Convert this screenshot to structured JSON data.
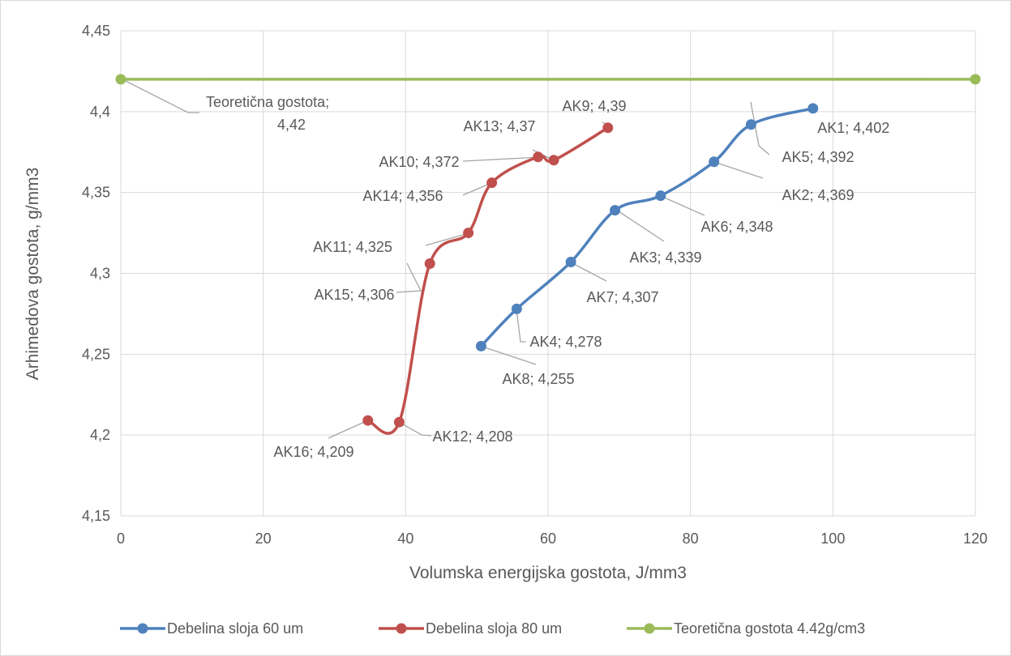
{
  "chart_data": {
    "type": "scatter",
    "title": "",
    "xlabel": "Volumska energijska gostota, J/mm3",
    "ylabel": "Arhimedova gostota, g/mm3",
    "xlim": [
      0,
      120
    ],
    "ylim": [
      4.15,
      4.45
    ],
    "x_ticks": [
      "0",
      "20",
      "40",
      "60",
      "80",
      "100",
      "120"
    ],
    "y_ticks": [
      "4,15",
      "4,2",
      "4,25",
      "4,3",
      "4,35",
      "4,4",
      "4,45"
    ],
    "grid": true,
    "legend_position": "bottom",
    "smooth_lines": true,
    "series": [
      {
        "name": "Debelina sloja 60 um",
        "color": "#4f81bd",
        "points": [
          {
            "x": 50.6,
            "y": 4.255,
            "label": "AK8; 4,255"
          },
          {
            "x": 55.6,
            "y": 4.278,
            "label": "AK4; 4,278"
          },
          {
            "x": 63.2,
            "y": 4.307,
            "label": "AK7; 4,307"
          },
          {
            "x": 69.4,
            "y": 4.339,
            "label": "AK3; 4,339"
          },
          {
            "x": 75.8,
            "y": 4.348,
            "label": "AK6; 4,348"
          },
          {
            "x": 83.3,
            "y": 4.369,
            "label": "AK2; 4,369"
          },
          {
            "x": 88.5,
            "y": 4.392,
            "label": "AK5; 4,392"
          },
          {
            "x": 97.2,
            "y": 4.402,
            "label": "AK1; 4,402"
          }
        ]
      },
      {
        "name": "Debelina sloja 80 um",
        "color": "#c0504d",
        "points": [
          {
            "x": 34.7,
            "y": 4.209,
            "label": "AK16; 4,209"
          },
          {
            "x": 39.1,
            "y": 4.208,
            "label": "AK12; 4,208"
          },
          {
            "x": 43.4,
            "y": 4.306,
            "label": "AK15; 4,306"
          },
          {
            "x": 48.8,
            "y": 4.325,
            "label": "AK11; 4,325"
          },
          {
            "x": 52.1,
            "y": 4.356,
            "label": "AK14; 4,356"
          },
          {
            "x": 58.6,
            "y": 4.372,
            "label": "AK10; 4,372"
          },
          {
            "x": 60.8,
            "y": 4.37,
            "label": "AK13; 4,37"
          },
          {
            "x": 68.4,
            "y": 4.39,
            "label": "AK9; 4,39"
          }
        ]
      },
      {
        "name": "Teoretična gostota 4.42g/cm3",
        "color": "#9bbb59",
        "points": [
          {
            "x": 0,
            "y": 4.42,
            "label": "Teoretična gostota; 4,42"
          },
          {
            "x": 120,
            "y": 4.42,
            "label": ""
          }
        ]
      }
    ]
  }
}
